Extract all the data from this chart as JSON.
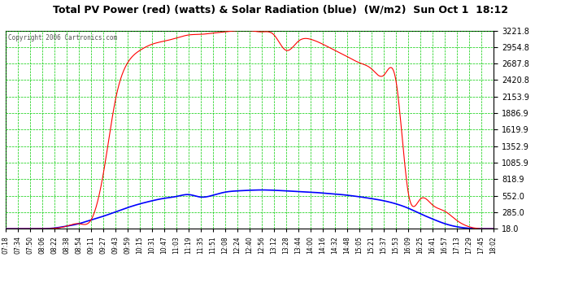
{
  "title": "Total PV Power (red) (watts) & Solar Radiation (blue)  (W/m2)  Sun Oct 1  18:12",
  "copyright": "Copyright 2006 Cartronics.com",
  "bg_color": "#ffffff",
  "plot_bg_color": "#ffffff",
  "grid_color": "#00cc00",
  "text_color": "#000000",
  "ytick_color": "#000000",
  "xtick_color": "#000000",
  "title_color": "#000000",
  "red_line_color": "#ff0000",
  "blue_line_color": "#0000ff",
  "ymin": 18.0,
  "ymax": 3221.8,
  "yticks": [
    18.0,
    285.0,
    552.0,
    818.9,
    1085.9,
    1352.9,
    1619.9,
    1886.9,
    2153.9,
    2420.8,
    2687.8,
    2954.8,
    3221.8
  ],
  "xtick_labels": [
    "07:18",
    "07:34",
    "07:50",
    "08:06",
    "08:22",
    "08:38",
    "08:54",
    "09:11",
    "09:27",
    "09:43",
    "09:59",
    "10:15",
    "10:31",
    "10:47",
    "11:03",
    "11:19",
    "11:35",
    "11:51",
    "12:08",
    "12:24",
    "12:40",
    "12:56",
    "13:12",
    "13:28",
    "13:44",
    "14:00",
    "14:16",
    "14:32",
    "14:48",
    "15:05",
    "15:21",
    "15:37",
    "15:53",
    "16:09",
    "16:25",
    "16:41",
    "16:57",
    "17:13",
    "17:29",
    "17:45",
    "18:02"
  ],
  "pv_data": [
    18,
    18,
    18,
    18,
    25,
    60,
    100,
    160,
    900,
    2100,
    2700,
    2900,
    3000,
    3050,
    3100,
    3150,
    3160,
    3180,
    3200,
    3221,
    3221,
    3200,
    3150,
    2900,
    3050,
    3080,
    3000,
    2900,
    2800,
    2700,
    2600,
    2500,
    2400,
    600,
    500,
    400,
    300,
    150,
    50,
    18,
    18
  ],
  "solar_data": [
    18,
    18,
    18,
    18,
    30,
    60,
    100,
    160,
    220,
    290,
    360,
    420,
    470,
    510,
    540,
    570,
    530,
    560,
    610,
    630,
    640,
    645,
    640,
    630,
    620,
    610,
    595,
    580,
    560,
    535,
    505,
    470,
    420,
    350,
    260,
    175,
    100,
    50,
    25,
    18,
    18
  ]
}
